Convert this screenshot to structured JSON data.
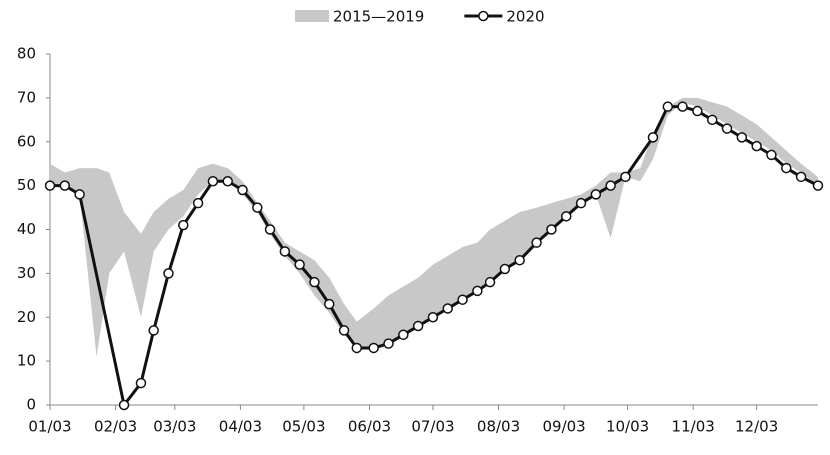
{
  "chart_data": {
    "type": "line",
    "xlim": [
      0,
      363
    ],
    "xticks": [
      {
        "value": 0,
        "label": "01/03"
      },
      {
        "value": 31,
        "label": "02/03"
      },
      {
        "value": 59,
        "label": "03/03"
      },
      {
        "value": 90,
        "label": "04/03"
      },
      {
        "value": 120,
        "label": "05/03"
      },
      {
        "value": 151,
        "label": "06/03"
      },
      {
        "value": 181,
        "label": "07/03"
      },
      {
        "value": 212,
        "label": "08/03"
      },
      {
        "value": 243,
        "label": "09/03"
      },
      {
        "value": 273,
        "label": "10/03"
      },
      {
        "value": 304,
        "label": "11/03"
      },
      {
        "value": 334,
        "label": "12/03"
      }
    ],
    "ylim": [
      0,
      80
    ],
    "yticks": [
      0,
      10,
      20,
      30,
      40,
      50,
      60,
      70,
      80
    ],
    "grid": false,
    "legend": "top",
    "series": [
      {
        "name": "2015—2019",
        "color": "#c8c8c8",
        "x": [
          0,
          7,
          14,
          22,
          28,
          35,
          43,
          49,
          56,
          63,
          70,
          77,
          84,
          91,
          98,
          104,
          111,
          118,
          125,
          132,
          139,
          145,
          153,
          160,
          167,
          174,
          181,
          188,
          195,
          202,
          208,
          215,
          222,
          230,
          237,
          244,
          251,
          258,
          265,
          272,
          279,
          285,
          292,
          299,
          306,
          313,
          320,
          327,
          334,
          341,
          348,
          355,
          363
        ],
        "lower": [
          50,
          50,
          48,
          11,
          30,
          35,
          20,
          35,
          40,
          43,
          48,
          51,
          51,
          48,
          44,
          39,
          34,
          30,
          25,
          21,
          16,
          13,
          13,
          14,
          16,
          18,
          20,
          22,
          24,
          26,
          28,
          31,
          33,
          37,
          40,
          43,
          46,
          48,
          38,
          52,
          51,
          56,
          66,
          69,
          68,
          66,
          64,
          62,
          60,
          58,
          55,
          53,
          50
        ],
        "upper": [
          55,
          53,
          54,
          54,
          53,
          44,
          39,
          44,
          47,
          49,
          54,
          55,
          54,
          51,
          46,
          42,
          37,
          35,
          33,
          29,
          23,
          19,
          22,
          25,
          27,
          29,
          32,
          34,
          36,
          37,
          40,
          42,
          44,
          45,
          46,
          47,
          48,
          50,
          53,
          53,
          54,
          62,
          68,
          70,
          70,
          69,
          68,
          66,
          64,
          61,
          58,
          55,
          52
        ]
      },
      {
        "name": "2020",
        "color": "#111111",
        "x": [
          0,
          7,
          14,
          35,
          43,
          49,
          56,
          63,
          70,
          77,
          84,
          91,
          98,
          104,
          111,
          118,
          125,
          132,
          139,
          145,
          153,
          160,
          167,
          174,
          181,
          188,
          195,
          202,
          208,
          215,
          222,
          230,
          237,
          244,
          251,
          258,
          265,
          272,
          285,
          292,
          299,
          306,
          313,
          320,
          327,
          334,
          341,
          348,
          355,
          363
        ],
        "values": [
          50,
          50,
          48,
          0,
          5,
          17,
          30,
          41,
          46,
          51,
          51,
          49,
          45,
          40,
          35,
          32,
          28,
          23,
          17,
          13,
          13,
          14,
          16,
          18,
          20,
          22,
          24,
          26,
          28,
          31,
          33,
          37,
          40,
          43,
          46,
          48,
          50,
          52,
          61,
          68,
          68,
          67,
          65,
          63,
          61,
          59,
          57,
          54,
          52,
          50
        ]
      }
    ]
  }
}
